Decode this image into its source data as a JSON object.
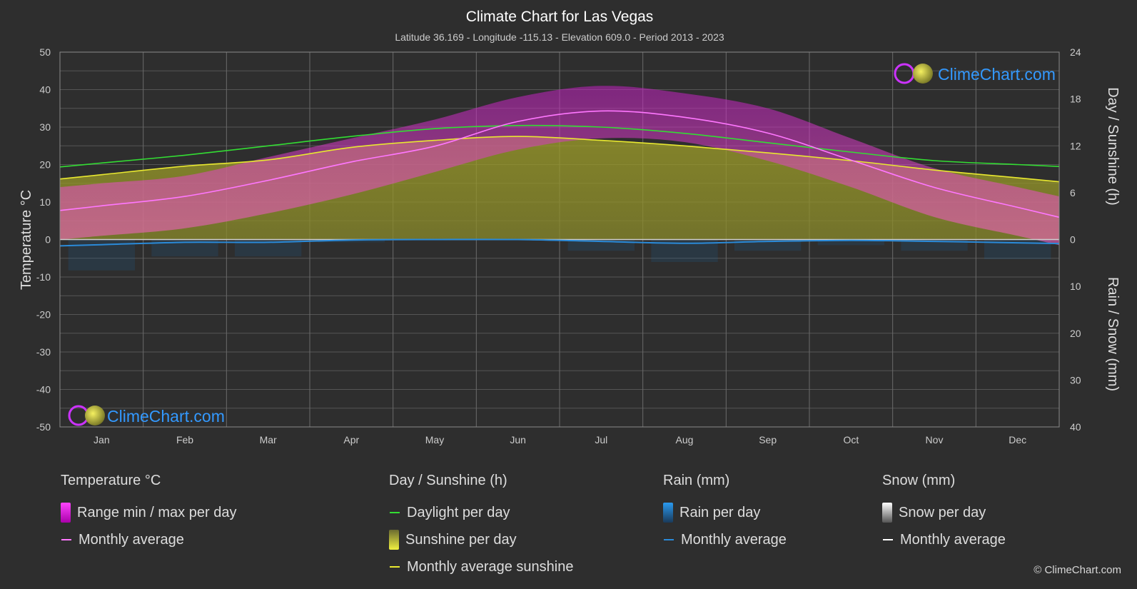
{
  "title": "Climate Chart for Las Vegas",
  "subtitle": "Latitude 36.169 - Longitude -115.13 - Elevation 609.0 - Period 2013 - 2023",
  "watermark": "ClimeChart.com",
  "copyright": "© ClimeChart.com",
  "colors": {
    "background": "#2e2e2e",
    "grid": "#5e5e5e",
    "temp_range": "#e020e0",
    "temp_avg": "#ff77ff",
    "daylight": "#33dd33",
    "sunshine_fill": "#c8c832",
    "sunshine_avg": "#e8e830",
    "rain": "#1a8fe0",
    "rain_avg": "#2a8ad8",
    "snow": "#ffffff",
    "brand": "#3399ff"
  },
  "chart_data": {
    "type": "area",
    "months": [
      "Jan",
      "Feb",
      "Mar",
      "Apr",
      "May",
      "Jun",
      "Jul",
      "Aug",
      "Sep",
      "Oct",
      "Nov",
      "Dec"
    ],
    "left_axis": {
      "label": "Temperature °C",
      "ylim": [
        -50,
        50
      ],
      "ticks": [
        "50",
        "40",
        "30",
        "20",
        "10",
        "0",
        "-10",
        "-20",
        "-30",
        "-40",
        "-50"
      ]
    },
    "right_axis_top": {
      "label": "Day / Sunshine (h)",
      "ylim": [
        0,
        24
      ],
      "ticks": [
        "24",
        "18",
        "12",
        "6",
        "0"
      ]
    },
    "right_axis_bottom": {
      "label": "Rain / Snow (mm)",
      "ylim": [
        0,
        40
      ],
      "ticks": [
        "0",
        "10",
        "20",
        "30",
        "40"
      ]
    },
    "series": {
      "temp_max_avg": [
        15,
        17,
        22,
        27,
        32,
        38,
        41,
        39,
        35,
        27,
        19,
        14
      ],
      "temp_min_avg": [
        1,
        3,
        7,
        12,
        18,
        24,
        27,
        26,
        21,
        14,
        6,
        1
      ],
      "temp_monthly_avg": [
        9.0,
        11.5,
        15.8,
        20.7,
        24.9,
        31.5,
        34.3,
        32.6,
        28.4,
        21.2,
        13.9,
        8.6
      ],
      "daylight_hours": [
        9.8,
        10.8,
        12.0,
        13.2,
        14.2,
        14.6,
        14.4,
        13.6,
        12.4,
        11.2,
        10.1,
        9.6
      ],
      "sunshine_hours": [
        8.3,
        9.4,
        10.2,
        11.8,
        12.7,
        13.2,
        12.7,
        12.0,
        11.1,
        10.1,
        8.9,
        7.9
      ],
      "rain_monthly_avg_mm": [
        1.1,
        0.6,
        0.6,
        0.1,
        0.0,
        0.0,
        0.4,
        0.8,
        0.4,
        0.2,
        0.4,
        0.7
      ],
      "snow_monthly_avg_mm": [
        0,
        0,
        0,
        0,
        0,
        0,
        0,
        0,
        0,
        0,
        0,
        0
      ]
    }
  },
  "legend": {
    "temperature": {
      "header": "Temperature °C",
      "items": [
        "Range min / max per day",
        "Monthly average"
      ]
    },
    "sunshine": {
      "header": "Day / Sunshine (h)",
      "items": [
        "Daylight per day",
        "Sunshine per day",
        "Monthly average sunshine"
      ]
    },
    "rain": {
      "header": "Rain (mm)",
      "items": [
        "Rain per day",
        "Monthly average"
      ]
    },
    "snow": {
      "header": "Snow (mm)",
      "items": [
        "Snow per day",
        "Monthly average"
      ]
    }
  }
}
